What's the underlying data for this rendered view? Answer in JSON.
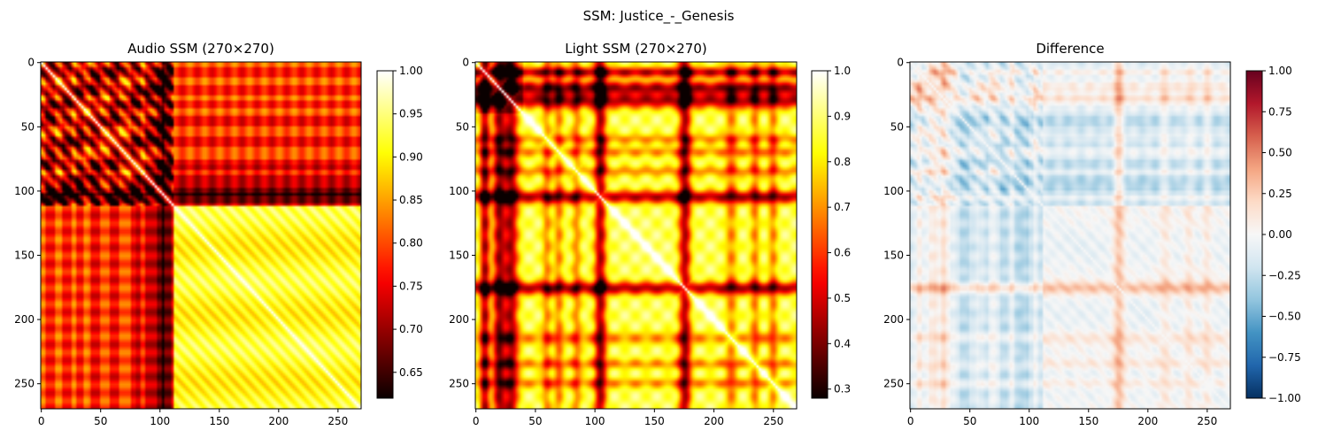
{
  "figure": {
    "suptitle": "SSM: Justice_-_Genesis"
  },
  "chart_data": [
    {
      "type": "heatmap",
      "title": "Audio SSM (270×270)",
      "matrix_size": 270,
      "xticks": [
        0,
        50,
        100,
        150,
        200,
        250
      ],
      "yticks": [
        0,
        50,
        100,
        150,
        200,
        250
      ],
      "colormap": "hot",
      "vmin": 0.62,
      "vmax": 1.0,
      "colorbar_ticks": [
        "0.65",
        "0.70",
        "0.75",
        "0.80",
        "0.85",
        "0.90",
        "0.95",
        "1.00"
      ],
      "colorbar_values": [
        0.65,
        0.7,
        0.75,
        0.8,
        0.85,
        0.9,
        0.95,
        1.0
      ],
      "segments": [
        {
          "start": 0,
          "end": 40,
          "level": 0.79
        },
        {
          "start": 40,
          "end": 80,
          "level": 0.76
        },
        {
          "start": 80,
          "end": 112,
          "level": 0.71
        },
        {
          "start": 112,
          "end": 270,
          "level": 0.92
        }
      ],
      "dark_bands": [
        8,
        22,
        33,
        46,
        62,
        80,
        92,
        100,
        106
      ],
      "bright_bands": [
        140,
        160,
        205,
        240,
        255
      ]
    },
    {
      "type": "heatmap",
      "title": "Light SSM (270×270)",
      "matrix_size": 270,
      "xticks": [
        0,
        50,
        100,
        150,
        200,
        250
      ],
      "yticks": [
        0,
        50,
        100,
        150,
        200,
        250
      ],
      "colormap": "hot",
      "vmin": 0.28,
      "vmax": 1.0,
      "colorbar_ticks": [
        "0.3",
        "0.4",
        "0.5",
        "0.6",
        "0.7",
        "0.8",
        "0.9",
        "1.0"
      ],
      "colorbar_values": [
        0.3,
        0.4,
        0.5,
        0.6,
        0.7,
        0.8,
        0.9,
        1.0
      ],
      "dark_bands": [
        [
          8,
          4
        ],
        [
          20,
          5
        ],
        [
          30,
          6
        ],
        [
          105,
          5
        ],
        [
          176,
          5
        ]
      ],
      "mid_bands": [
        [
          60,
          4
        ],
        [
          70,
          4
        ],
        [
          85,
          4
        ],
        [
          215,
          5
        ],
        [
          235,
          4
        ],
        [
          250,
          4
        ]
      ]
    },
    {
      "type": "heatmap",
      "title": "Difference",
      "matrix_size": 270,
      "xticks": [
        0,
        50,
        100,
        150,
        200,
        250
      ],
      "yticks": [
        0,
        50,
        100,
        150,
        200,
        250
      ],
      "colormap": "RdBu_r",
      "vmin": -1.0,
      "vmax": 1.0,
      "colorbar_ticks": [
        "1.00",
        "0.75",
        "0.50",
        "0.25",
        "0.00",
        "−0.25",
        "−0.50",
        "−0.75",
        "−1.00"
      ],
      "colorbar_values": [
        1.0,
        0.75,
        0.5,
        0.25,
        0.0,
        -0.25,
        -0.5,
        -0.75,
        -1.0
      ]
    }
  ]
}
